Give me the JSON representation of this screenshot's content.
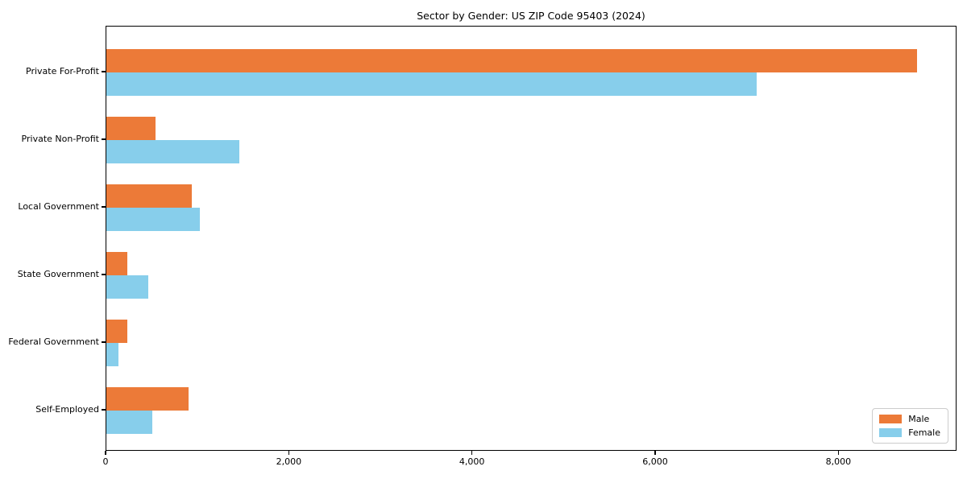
{
  "title": "Sector by Gender: US ZIP Code 95403 (2024)",
  "colors": {
    "male": "#ec7a38",
    "female": "#87ceeb",
    "axis": "#000000",
    "legend_border": "#cccccc",
    "background": "#ffffff"
  },
  "chart_data": {
    "type": "bar",
    "orientation": "horizontal",
    "title": "Sector by Gender: US ZIP Code 95403 (2024)",
    "categories": [
      "Private For-Profit",
      "Private Non-Profit",
      "Local Government",
      "State Government",
      "Federal Government",
      "Self-Employed"
    ],
    "series": [
      {
        "name": "Male",
        "color": "#ec7a38",
        "values": [
          8850,
          540,
          930,
          230,
          230,
          900
        ]
      },
      {
        "name": "Female",
        "color": "#87ceeb",
        "values": [
          7100,
          1450,
          1020,
          460,
          130,
          500
        ]
      }
    ],
    "xlabel": "",
    "ylabel": "",
    "xlim": [
      0,
      9290
    ],
    "x_ticks": [
      {
        "value": 0,
        "label": "0"
      },
      {
        "value": 2000,
        "label": "2,000"
      },
      {
        "value": 4000,
        "label": "4,000"
      },
      {
        "value": 6000,
        "label": "6,000"
      },
      {
        "value": 8000,
        "label": "8,000"
      }
    ],
    "grid": false,
    "legend": {
      "position": "lower right",
      "entries": [
        {
          "label": "Male",
          "color": "#ec7a38"
        },
        {
          "label": "Female",
          "color": "#87ceeb"
        }
      ]
    }
  }
}
